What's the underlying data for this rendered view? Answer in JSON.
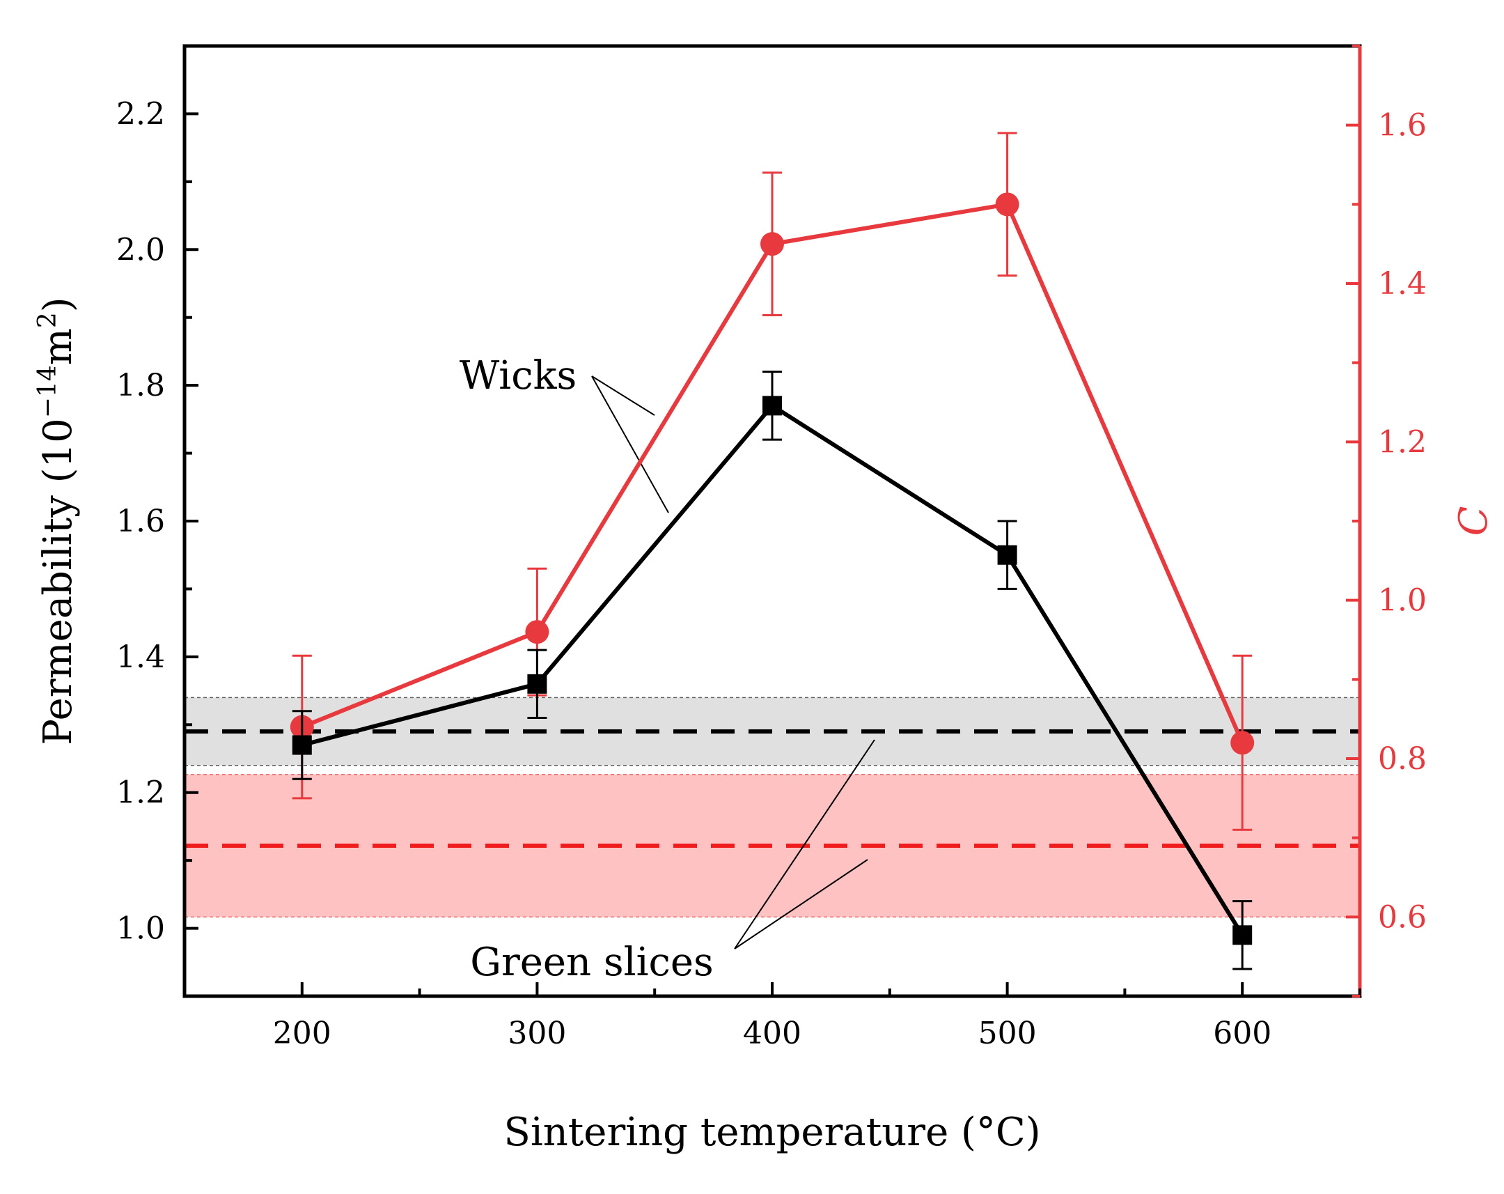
{
  "chart_data": {
    "type": "line",
    "title": "",
    "xlabel": "Sintering temperature (°C)",
    "ylabel": "Permeability",
    "ylabel_unit_prefix": "(10",
    "ylabel_unit_exp": "−14",
    "ylabel_unit_mid": "m",
    "ylabel_unit_exp2": "2",
    "ylabel_unit_suffix": ")",
    "y2label": "C",
    "xlim": [
      150,
      650
    ],
    "ylim": [
      0.9,
      2.3
    ],
    "y2lim": [
      0.5,
      1.7
    ],
    "x_ticks": [
      200,
      300,
      400,
      500,
      600
    ],
    "x_tick_labels": [
      "200",
      "300",
      "400",
      "500",
      "600"
    ],
    "y_ticks": [
      1.0,
      1.2,
      1.4,
      1.6,
      1.8,
      2.0,
      2.2
    ],
    "y_tick_labels": [
      "1.0",
      "1.2",
      "1.4",
      "1.6",
      "1.8",
      "2.0",
      "2.2"
    ],
    "y2_ticks": [
      0.6,
      0.8,
      1.0,
      1.2,
      1.4,
      1.6
    ],
    "y2_tick_labels": [
      "0.6",
      "0.8",
      "1.0",
      "1.2",
      "1.4",
      "1.6"
    ],
    "x": [
      200,
      300,
      400,
      500,
      600
    ],
    "series": [
      {
        "name": "Permeability",
        "axis": "left",
        "marker": "square",
        "color": "#000000",
        "values": [
          1.27,
          1.36,
          1.77,
          1.55,
          0.99
        ],
        "errors": [
          0.05,
          0.05,
          0.05,
          0.05,
          0.05
        ]
      },
      {
        "name": "C",
        "axis": "right",
        "marker": "circle",
        "color": "#e8393e",
        "values": [
          0.84,
          0.96,
          1.45,
          1.5,
          0.82
        ],
        "errors": [
          0.09,
          0.08,
          0.09,
          0.09,
          0.11
        ]
      }
    ],
    "bands": [
      {
        "name": "Green slices permeability",
        "axis": "left",
        "center": 1.29,
        "low": 1.24,
        "high": 1.34,
        "fill": "#e0e0e0",
        "line": "#000000"
      },
      {
        "name": "Green slices C",
        "axis": "right",
        "center": 0.69,
        "low": 0.6,
        "high": 0.78,
        "fill": "#ffc2c2",
        "line": "#ee1c1c"
      }
    ],
    "annotations": [
      {
        "text": "Wicks"
      },
      {
        "text": "Green slices"
      }
    ]
  }
}
